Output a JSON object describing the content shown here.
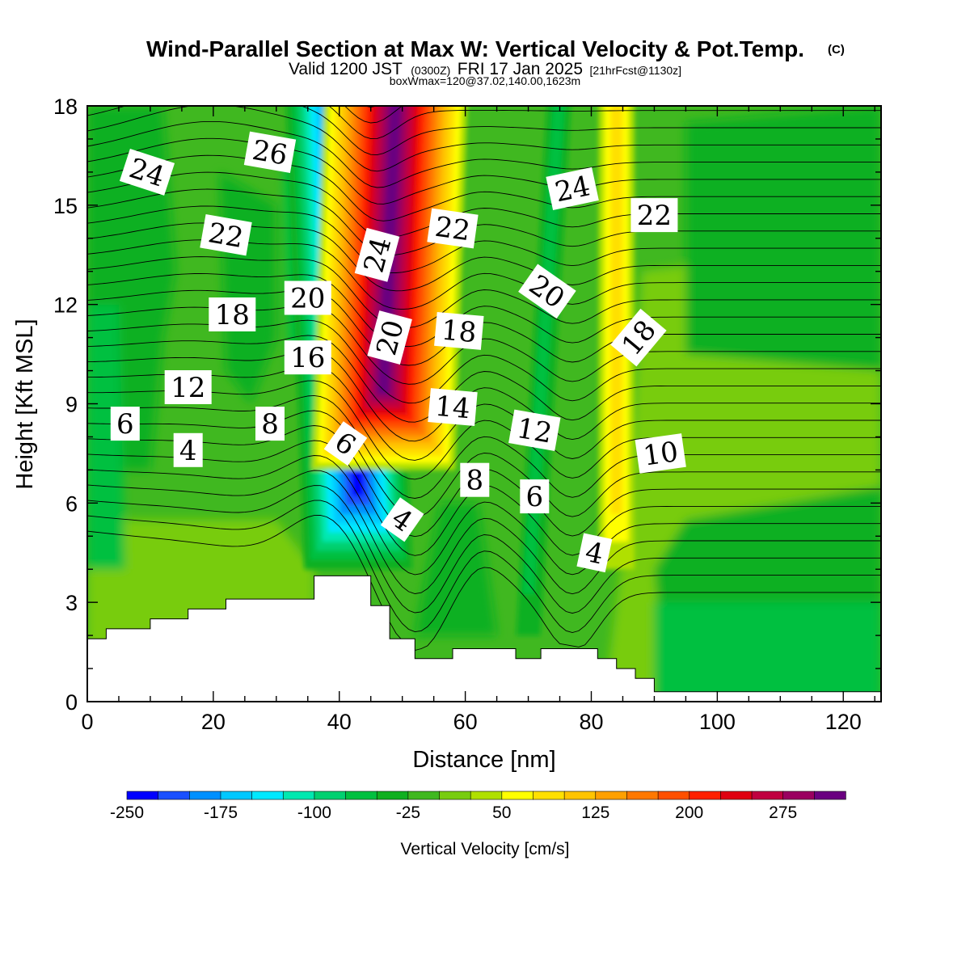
{
  "chart_data": {
    "type": "heatmap",
    "title": "Wind-Parallel Section at Max W: Vertical Velocity & Pot.Temp.",
    "title_mark": "(C)",
    "subtitle_parts": {
      "a": "Valid 1200 JST",
      "b": "(0300Z)",
      "c": "FRI 17 Jan 2025",
      "d": "[21hrFcst@1130z]"
    },
    "subtitle2": "boxWmax=120@37.02,140.00,1623m",
    "xlabel": "Distance [nm]",
    "ylabel": "Height [Kft MSL]",
    "xlim": [
      0,
      126
    ],
    "ylim": [
      0,
      18
    ],
    "xticks": [
      0,
      20,
      40,
      60,
      80,
      100,
      120
    ],
    "yticks": [
      0,
      3,
      6,
      9,
      12,
      15,
      18
    ],
    "colorbar": {
      "label": "Vertical Velocity [cm/s]",
      "levels": [
        -250,
        -225,
        -200,
        -175,
        -150,
        -125,
        -100,
        -75,
        -50,
        -25,
        0,
        25,
        50,
        75,
        100,
        125,
        150,
        175,
        200,
        225,
        250,
        275,
        300,
        325
      ],
      "colors": [
        "#0000ff",
        "#1a50ff",
        "#0090ff",
        "#00c8ff",
        "#00e8ff",
        "#00e8b0",
        "#00d070",
        "#00c040",
        "#10b020",
        "#40b820",
        "#78cc10",
        "#b0e000",
        "#ffff00",
        "#ffe000",
        "#ffc400",
        "#ffa000",
        "#ff7800",
        "#ff5000",
        "#ff2000",
        "#e00010",
        "#c00040",
        "#9a0060",
        "#6a0080"
      ],
      "tick_labels": [
        "-250",
        "-175",
        "-100",
        "-25",
        "50",
        "125",
        "200",
        "275"
      ]
    },
    "terrain_profile": [
      [
        0,
        1.9
      ],
      [
        3,
        2.2
      ],
      [
        10,
        2.5
      ],
      [
        16,
        2.8
      ],
      [
        19,
        2.8
      ],
      [
        22,
        3.1
      ],
      [
        36,
        3.8
      ],
      [
        45,
        2.9
      ],
      [
        48,
        1.9
      ],
      [
        52,
        1.3
      ],
      [
        58,
        1.6
      ],
      [
        68,
        1.3
      ],
      [
        72,
        1.6
      ],
      [
        81,
        1.3
      ],
      [
        84,
        1.0
      ],
      [
        87,
        0.7
      ],
      [
        90,
        0.3
      ],
      [
        126,
        0.3
      ]
    ],
    "vertical_velocity_bands": [
      {
        "x_base": 43,
        "x_top": 40,
        "min_height": 4,
        "value": -250
      },
      {
        "x_base": 47,
        "x_top": 49,
        "min_height": 7,
        "value": 325
      },
      {
        "x_base": 70,
        "x_top": 75,
        "min_height": 2,
        "value": -75
      },
      {
        "x_base": 84,
        "x_top": 84,
        "min_height": 4,
        "value": 75
      }
    ],
    "theta_contour_labels": [
      {
        "text": "26",
        "x": 29,
        "y": 16.6,
        "angle": 10
      },
      {
        "text": "24",
        "x": 9.5,
        "y": 16.0,
        "angle": 18
      },
      {
        "text": "22",
        "x": 22,
        "y": 14.1,
        "angle": 10
      },
      {
        "text": "20",
        "x": 35,
        "y": 12.2,
        "angle": 0
      },
      {
        "text": "18",
        "x": 23,
        "y": 11.7,
        "angle": 0
      },
      {
        "text": "16",
        "x": 35,
        "y": 10.4,
        "angle": 0
      },
      {
        "text": "12",
        "x": 16,
        "y": 9.5,
        "angle": 0
      },
      {
        "text": "6",
        "x": 6,
        "y": 8.4,
        "angle": 0
      },
      {
        "text": "8",
        "x": 29,
        "y": 8.4,
        "angle": 0
      },
      {
        "text": "4",
        "x": 16,
        "y": 7.6,
        "angle": 0
      },
      {
        "text": "24",
        "x": 46,
        "y": 13.5,
        "angle": -75
      },
      {
        "text": "20",
        "x": 48,
        "y": 11.0,
        "angle": -75
      },
      {
        "text": "6",
        "x": 41,
        "y": 7.8,
        "angle": 35
      },
      {
        "text": "4",
        "x": 50,
        "y": 5.5,
        "angle": 35
      },
      {
        "text": "22",
        "x": 58,
        "y": 14.3,
        "angle": 8
      },
      {
        "text": "18",
        "x": 59,
        "y": 11.2,
        "angle": 5
      },
      {
        "text": "14",
        "x": 58,
        "y": 8.9,
        "angle": 5
      },
      {
        "text": "8",
        "x": 61.5,
        "y": 6.7,
        "angle": 0
      },
      {
        "text": "6",
        "x": 71,
        "y": 6.2,
        "angle": 0
      },
      {
        "text": "12",
        "x": 71,
        "y": 8.2,
        "angle": 10
      },
      {
        "text": "24",
        "x": 77,
        "y": 15.5,
        "angle": -12
      },
      {
        "text": "20",
        "x": 73,
        "y": 12.4,
        "angle": 35
      },
      {
        "text": "22",
        "x": 90,
        "y": 14.7,
        "angle": 0
      },
      {
        "text": "18",
        "x": 87.5,
        "y": 11.0,
        "angle": -50
      },
      {
        "text": "10",
        "x": 91,
        "y": 7.5,
        "angle": -8
      },
      {
        "text": "4",
        "x": 80.5,
        "y": 4.5,
        "angle": 12
      }
    ]
  }
}
